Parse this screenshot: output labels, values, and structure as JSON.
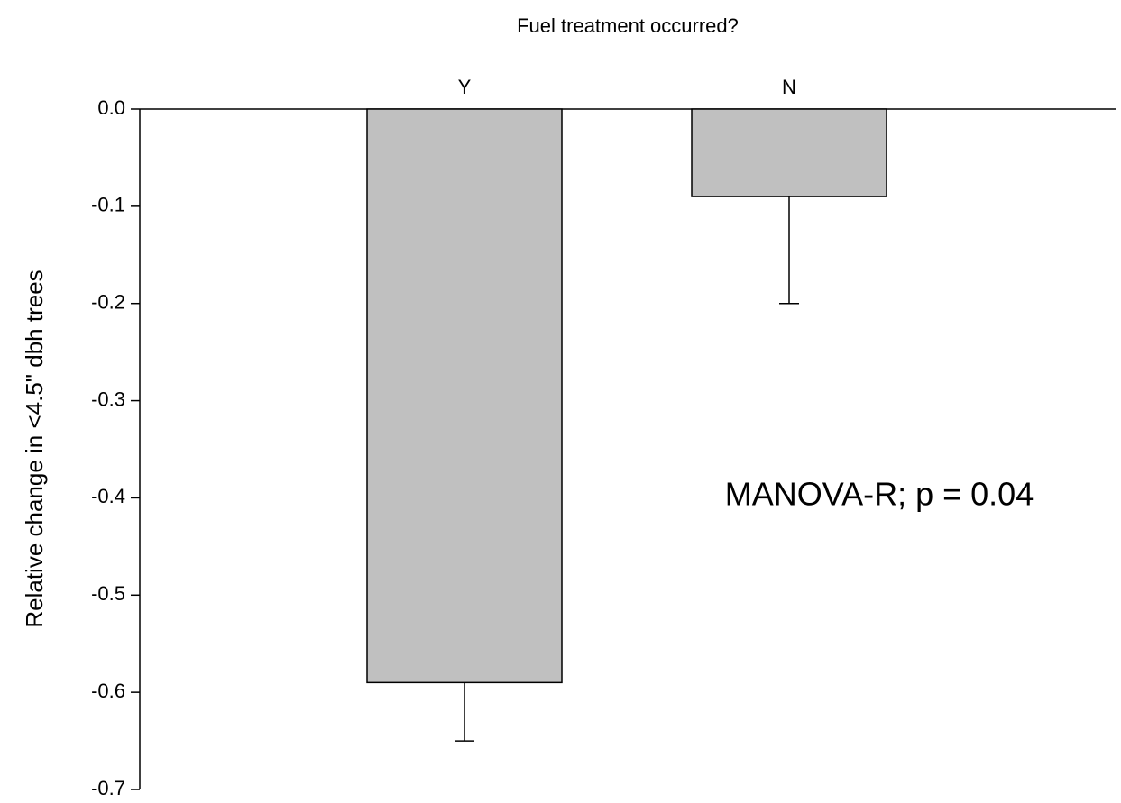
{
  "chart_data": {
    "type": "bar",
    "title": "Fuel treatment occurred?",
    "ylabel": "Relative change in <4.5\" dbh trees",
    "annotation": "MANOVA-R; p = 0.04",
    "categories": [
      "Y",
      "N"
    ],
    "values": [
      -0.59,
      -0.09
    ],
    "errors": [
      0.06,
      0.11
    ],
    "color": "#c0c0c0",
    "ylim": [
      0,
      -0.7
    ],
    "yticks": [
      {
        "value": 0,
        "label": "0.0"
      },
      -0.1,
      -0.2,
      -0.3,
      -0.4,
      -0.5,
      -0.6,
      -0.7
    ]
  }
}
